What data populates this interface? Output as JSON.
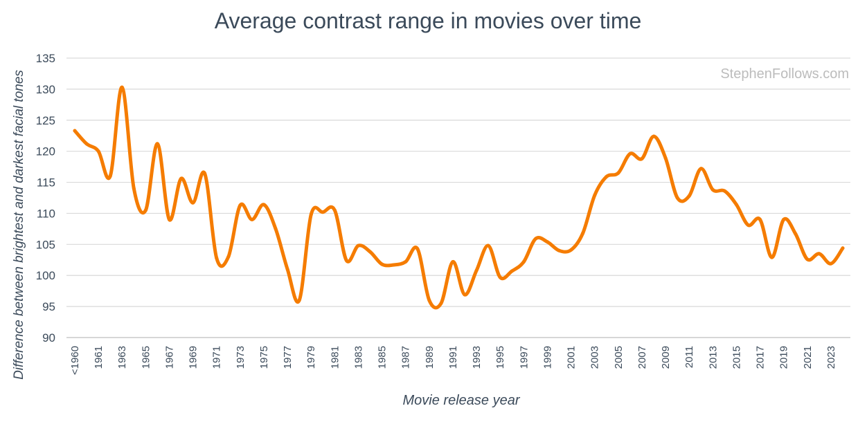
{
  "chart_data": {
    "type": "line",
    "title": "Average contrast range in movies over time",
    "xlabel": "Movie release year",
    "ylabel": "Difference between brightest and darkest facial tones",
    "watermark": "StephenFollows.com",
    "ylim": [
      90,
      135
    ],
    "yticks": [
      90,
      95,
      100,
      105,
      110,
      115,
      120,
      125,
      130,
      135
    ],
    "grid": true,
    "line_color": "#f57c00",
    "categories": [
      "<1960",
      "1960",
      "1961",
      "1962",
      "1963",
      "1964",
      "1965",
      "1966",
      "1967",
      "1968",
      "1969",
      "1970",
      "1971",
      "1972",
      "1973",
      "1974",
      "1975",
      "1976",
      "1977",
      "1978",
      "1979",
      "1980",
      "1981",
      "1982",
      "1983",
      "1984",
      "1985",
      "1986",
      "1987",
      "1988",
      "1989",
      "1990",
      "1991",
      "1992",
      "1993",
      "1994",
      "1995",
      "1996",
      "1997",
      "1998",
      "1999",
      "2000",
      "2001",
      "2002",
      "2003",
      "2004",
      "2005",
      "2006",
      "2007",
      "2008",
      "2009",
      "2010",
      "2011",
      "2012",
      "2013",
      "2014",
      "2015",
      "2016",
      "2017",
      "2018",
      "2019",
      "2020",
      "2021",
      "2022",
      "2023",
      "2024"
    ],
    "tick_labels": [
      "<1960",
      "1961",
      "1963",
      "1965",
      "1967",
      "1969",
      "1971",
      "1973",
      "1975",
      "1977",
      "1979",
      "1981",
      "1983",
      "1985",
      "1987",
      "1989",
      "1991",
      "1993",
      "1995",
      "1997",
      "1999",
      "2001",
      "2003",
      "2005",
      "2007",
      "2009",
      "2011",
      "2013",
      "2015",
      "2017",
      "2019",
      "2021",
      "2023"
    ],
    "series": [
      {
        "name": "Average contrast range",
        "values": [
          123.3,
          121.2,
          120.0,
          116.0,
          130.3,
          114.0,
          110.5,
          121.2,
          109.0,
          115.6,
          111.7,
          116.4,
          102.8,
          103.0,
          111.3,
          109.0,
          111.4,
          107.5,
          101.0,
          96.0,
          109.8,
          110.2,
          110.5,
          102.4,
          104.8,
          103.8,
          101.8,
          101.7,
          102.2,
          104.3,
          96.0,
          95.5,
          102.2,
          96.9,
          100.8,
          104.8,
          99.7,
          100.7,
          102.2,
          105.9,
          105.4,
          104.0,
          104.1,
          106.8,
          112.9,
          115.9,
          116.5,
          119.6,
          118.8,
          122.4,
          118.9,
          112.5,
          112.8,
          117.2,
          113.8,
          113.6,
          111.4,
          108.1,
          109.0,
          102.9,
          109.0,
          106.7,
          102.6,
          103.5,
          101.9,
          104.4
        ]
      }
    ]
  }
}
